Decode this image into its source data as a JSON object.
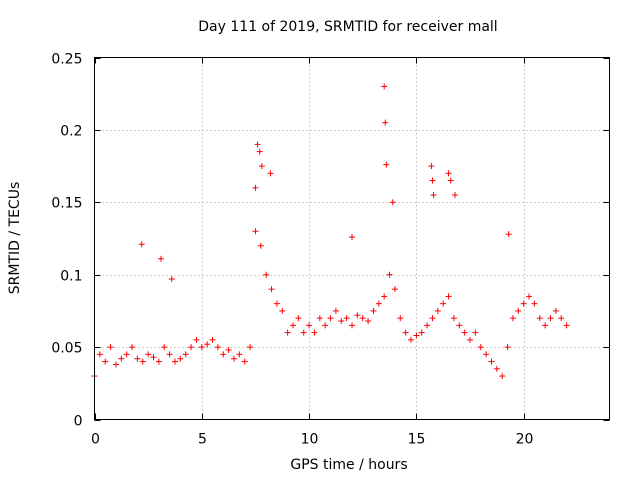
{
  "chart_data": {
    "type": "scatter",
    "title": "Day 111 of 2019, SRMTID for receiver mall",
    "xlabel": "GPS time / hours",
    "ylabel": "SRMTID / TECUs",
    "xlim": [
      0,
      24
    ],
    "ylim": [
      0,
      0.25
    ],
    "xticks": [
      0,
      5,
      10,
      15,
      20
    ],
    "yticks": [
      0,
      0.05,
      0.1,
      0.15,
      0.2,
      0.25
    ],
    "xtick_labels": [
      "0",
      "5",
      "10",
      "15",
      "20"
    ],
    "ytick_labels": [
      "0",
      "0.05",
      "0.1",
      "0.15",
      "0.2",
      "0.25"
    ],
    "grid": true,
    "marker": "+",
    "marker_color": "#ff0000",
    "series": [
      {
        "x": [
          0.0,
          0.25,
          0.5,
          0.75,
          1.0,
          1.25,
          1.5,
          1.75,
          2.0,
          2.25,
          2.5,
          2.75,
          3.0,
          3.25,
          3.5,
          3.75,
          4.0,
          4.25,
          4.5,
          4.75,
          5.0,
          5.25,
          5.5,
          5.75,
          6.0,
          6.25,
          6.5,
          6.75,
          7.0,
          7.25,
          7.5,
          7.75,
          8.0,
          8.25,
          8.5,
          8.75,
          9.0,
          9.25,
          9.5,
          9.75,
          10.0,
          10.25,
          10.5,
          10.75,
          11.0,
          11.25,
          11.5,
          11.75,
          12.0,
          12.25,
          12.5,
          12.75,
          13.0,
          13.25,
          13.5,
          13.75,
          14.0,
          14.25,
          14.5,
          14.75,
          15.0,
          15.25,
          15.5,
          15.75,
          16.0,
          16.25,
          16.5,
          16.75,
          17.0,
          17.25,
          17.5,
          17.75,
          18.0,
          18.25,
          18.5,
          18.75,
          19.0,
          19.25,
          19.5,
          19.75,
          20.0,
          20.25,
          20.5,
          20.75,
          21.0,
          21.25,
          21.5,
          21.75,
          22.0
        ],
        "y": [
          0.03,
          0.045,
          0.04,
          0.05,
          0.038,
          0.042,
          0.045,
          0.05,
          0.042,
          0.04,
          0.045,
          0.043,
          0.04,
          0.05,
          0.045,
          0.04,
          0.042,
          0.045,
          0.05,
          0.055,
          0.05,
          0.052,
          0.055,
          0.05,
          0.045,
          0.048,
          0.042,
          0.045,
          0.04,
          0.05,
          0.13,
          0.12,
          0.1,
          0.09,
          0.08,
          0.075,
          0.06,
          0.065,
          0.07,
          0.06,
          0.065,
          0.06,
          0.07,
          0.065,
          0.07,
          0.075,
          0.068,
          0.07,
          0.065,
          0.072,
          0.07,
          0.068,
          0.075,
          0.08,
          0.085,
          0.1,
          0.09,
          0.07,
          0.06,
          0.055,
          0.058,
          0.06,
          0.065,
          0.07,
          0.075,
          0.08,
          0.085,
          0.07,
          0.065,
          0.06,
          0.055,
          0.06,
          0.05,
          0.045,
          0.04,
          0.035,
          0.03,
          0.05,
          0.07,
          0.075,
          0.08,
          0.085,
          0.08,
          0.07,
          0.065,
          0.07,
          0.075,
          0.07,
          0.065
        ]
      },
      {
        "x": [
          7.5,
          7.6,
          7.7,
          7.8,
          8.2,
          13.5,
          13.55,
          13.6,
          13.9,
          15.7,
          15.75,
          15.8,
          16.5,
          16.6,
          16.8,
          2.2,
          3.1,
          3.6,
          12.0,
          19.3
        ],
        "y": [
          0.16,
          0.19,
          0.185,
          0.175,
          0.17,
          0.23,
          0.205,
          0.176,
          0.15,
          0.175,
          0.165,
          0.155,
          0.17,
          0.165,
          0.155,
          0.121,
          0.111,
          0.097,
          0.126,
          0.128
        ]
      }
    ]
  }
}
